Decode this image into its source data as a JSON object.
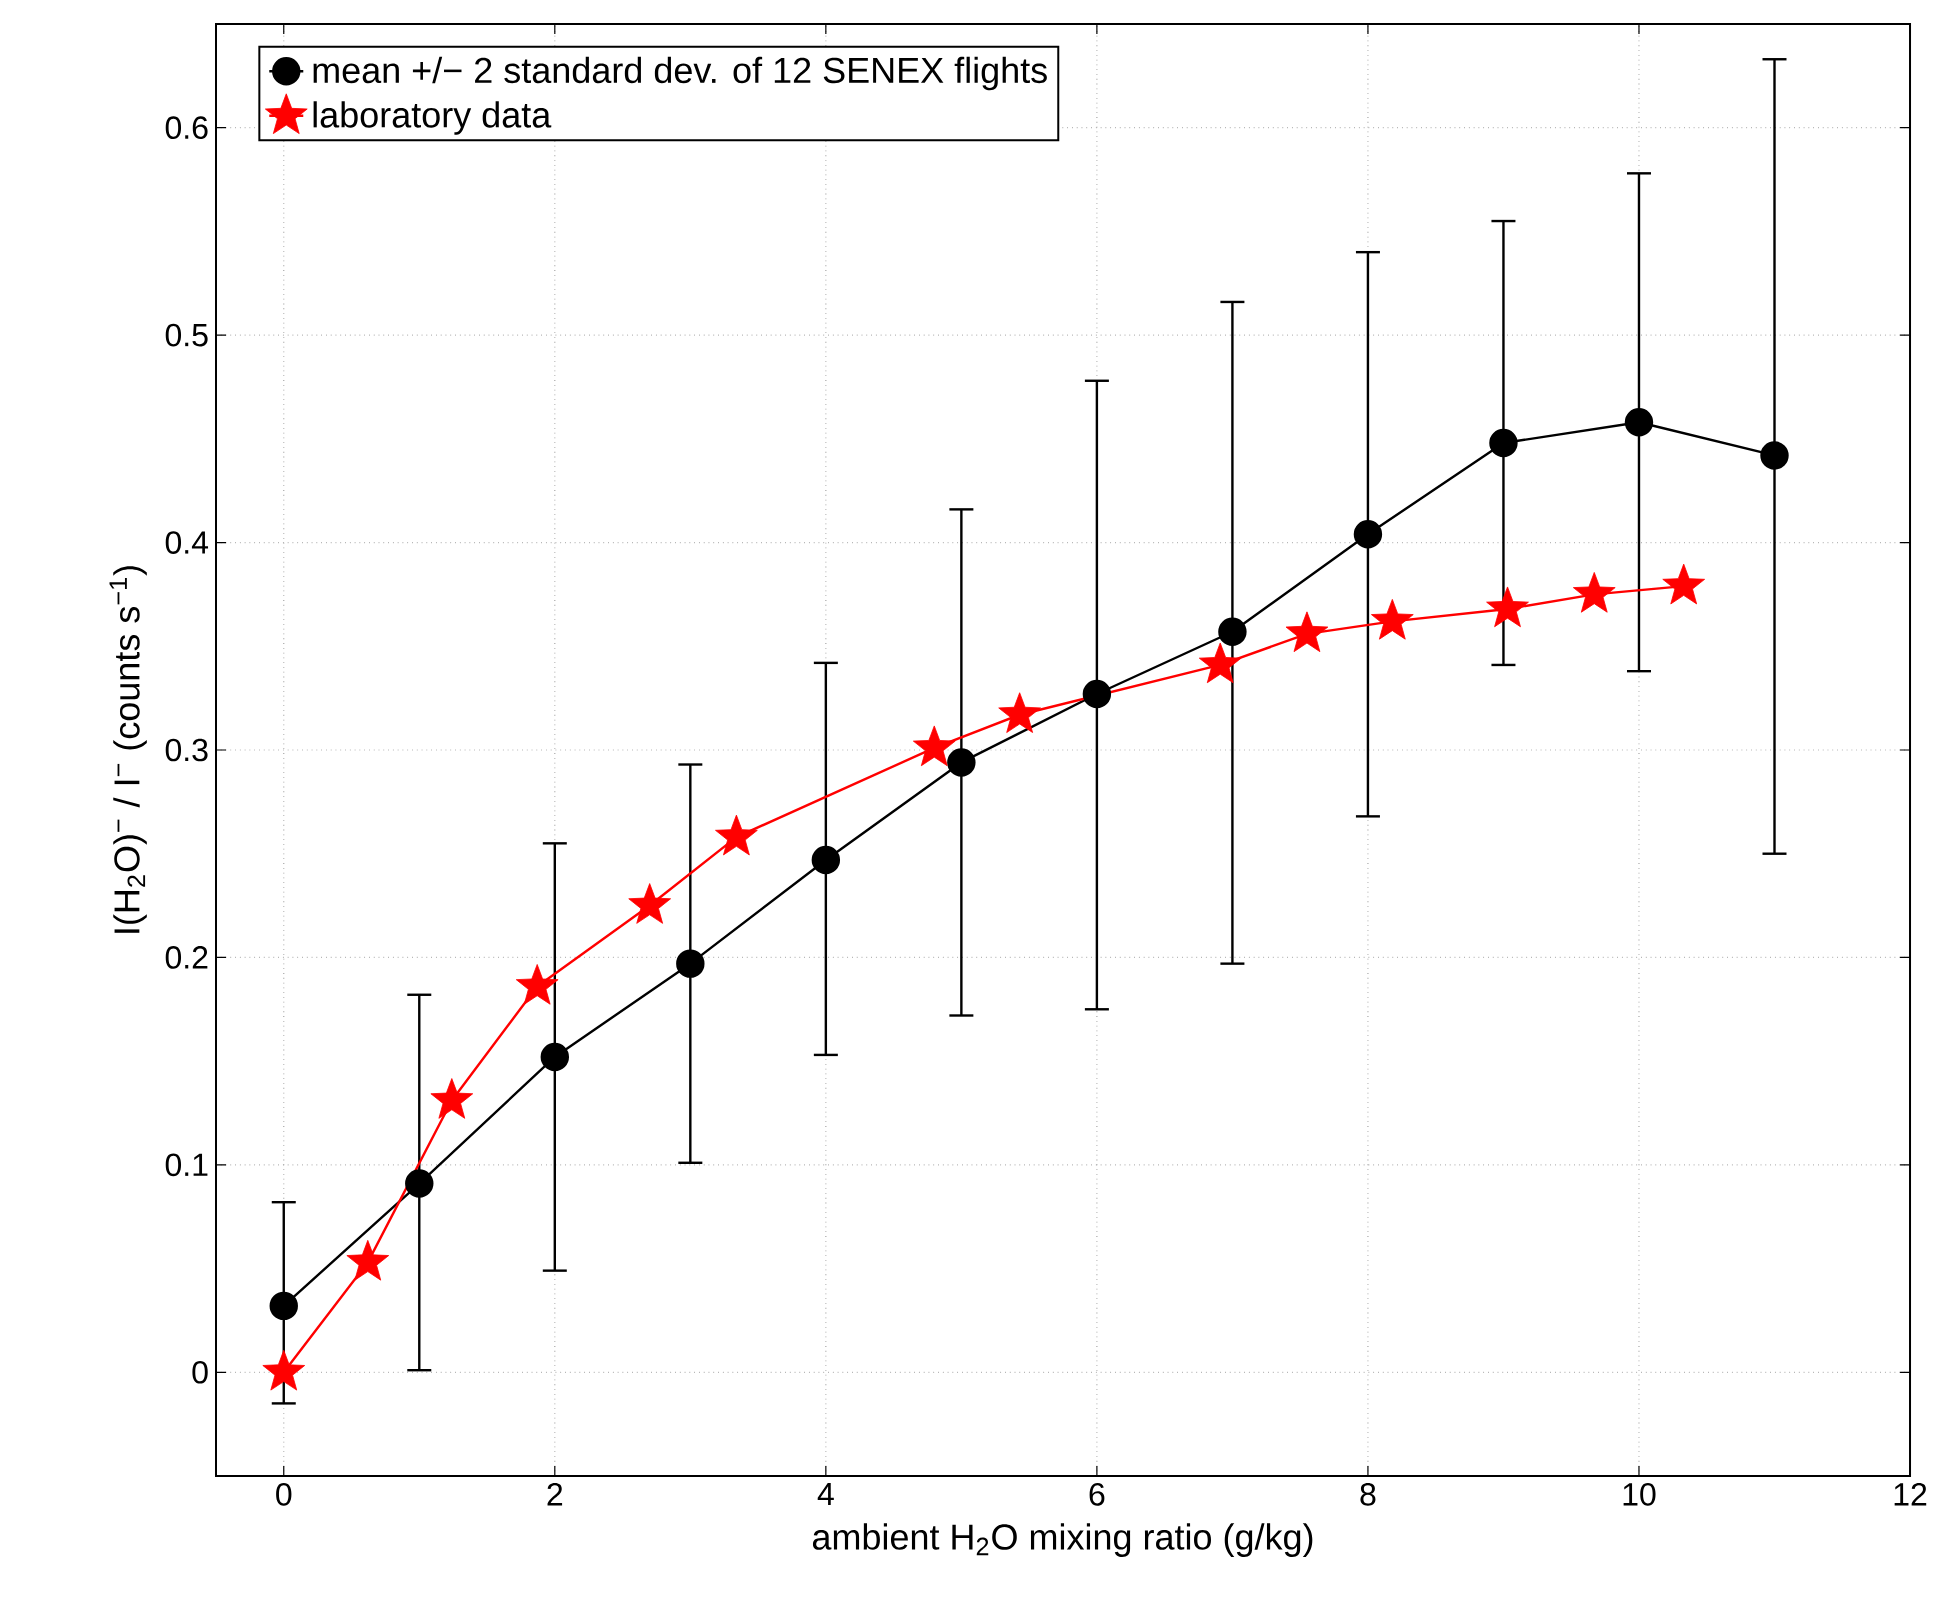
{
  "chart_data": {
    "type": "line",
    "xlabel": "ambient H$_{2}$O mixing ratio (g/kg)",
    "ylabel": "I(H$_{2}$O)$^{−}$ / I$^{−}$  (counts s$^{−1}$)",
    "xlim": [
      -0.5,
      12
    ],
    "ylim": [
      -0.05,
      0.65
    ],
    "xticks": [
      0,
      2,
      4,
      6,
      8,
      10,
      12
    ],
    "yticks": [
      0,
      0.1,
      0.2,
      0.3,
      0.4,
      0.5,
      0.6
    ],
    "grid": true,
    "legend": "top left",
    "line_style": "solid",
    "series": [
      {
        "name": "mean +/− 2 standard dev. of 12 SENEX flights",
        "color": "#000000",
        "marker": "circle",
        "x": [
          0,
          1,
          2,
          3,
          4,
          5,
          6,
          7,
          8,
          9,
          10,
          11
        ],
        "values": [
          0.032,
          0.091,
          0.152,
          0.197,
          0.247,
          0.294,
          0.327,
          0.357,
          0.404,
          0.448,
          0.458,
          0.442
        ],
        "errors": [
          [
            -0.015,
            0.082
          ],
          [
            0.001,
            0.182
          ],
          [
            0.049,
            0.255
          ],
          [
            0.101,
            0.293
          ],
          [
            0.153,
            0.342
          ],
          [
            0.172,
            0.416
          ],
          [
            0.175,
            0.478
          ],
          [
            0.197,
            0.516
          ],
          [
            0.268,
            0.54
          ],
          [
            0.341,
            0.555
          ],
          [
            0.338,
            0.578
          ],
          [
            0.25,
            0.633
          ]
        ]
      },
      {
        "name": "laboratory data",
        "color": "#ff0000",
        "marker": "star",
        "x": [
          0,
          0.62,
          1.24,
          1.87,
          2.7,
          3.34,
          4.8,
          5.43,
          6.91,
          7.55,
          8.18,
          9.03,
          9.67,
          10.33
        ],
        "values": [
          0,
          0.053,
          0.131,
          0.186,
          0.225,
          0.258,
          0.301,
          0.317,
          0.341,
          0.356,
          0.362,
          0.368,
          0.375,
          0.379
        ]
      }
    ]
  }
}
